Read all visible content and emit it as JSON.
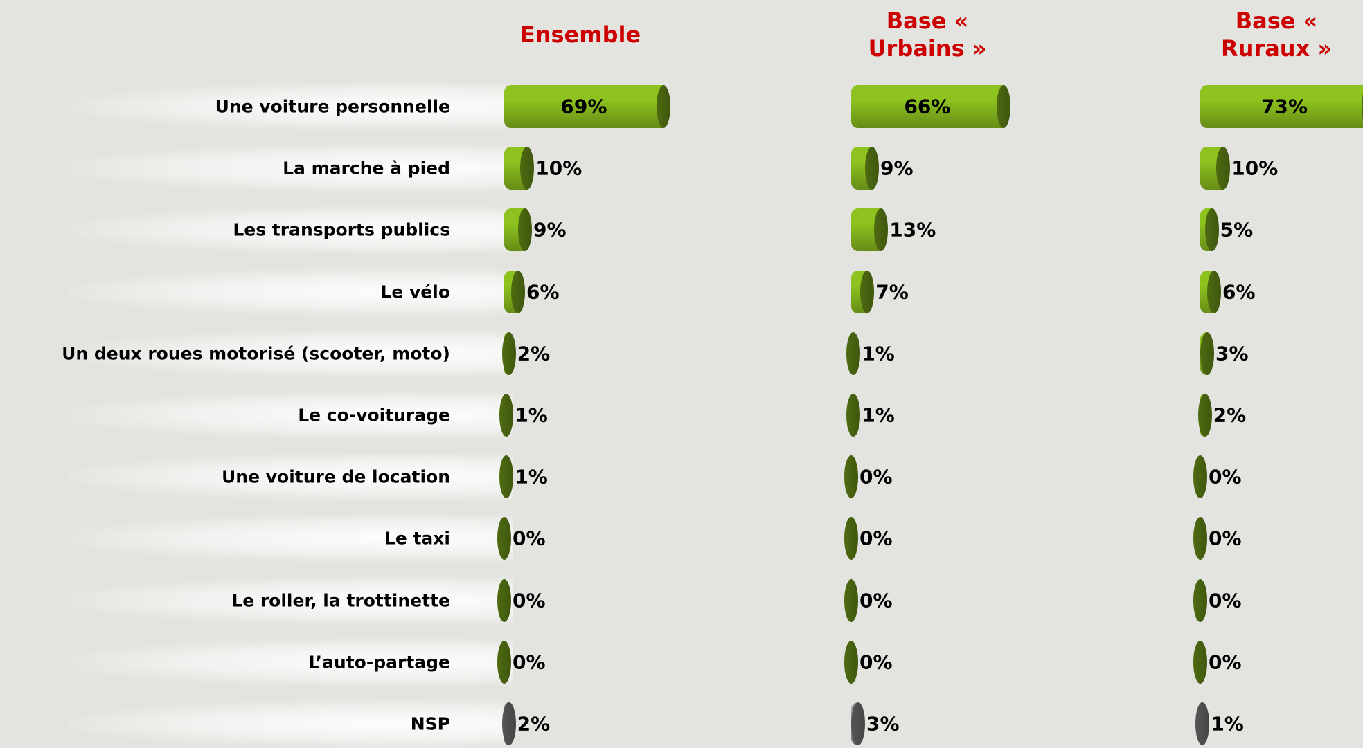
{
  "chart_data": {
    "type": "bar",
    "orientation": "horizontal",
    "categories": [
      "Une voiture personnelle",
      "La marche à pied",
      "Les transports publics",
      "Le vélo",
      "Un deux roues motorisé (scooter, moto)",
      "Le co-voiturage",
      "Une voiture de location",
      "Le taxi",
      "Le roller, la trottinette",
      "L’auto-partage",
      "NSP"
    ],
    "category_colors": [
      "#8dc21f",
      "#8dc21f",
      "#8dc21f",
      "#8dc21f",
      "#8dc21f",
      "#8dc21f",
      "#8dc21f",
      "#8dc21f",
      "#8dc21f",
      "#8dc21f",
      "#9a9a9a"
    ],
    "xlim": [
      0,
      100
    ],
    "series": [
      {
        "name": "Ensemble",
        "color": "#8dc21f",
        "values": [
          69,
          10,
          9,
          6,
          2,
          1,
          1,
          0,
          0,
          0,
          2
        ],
        "value_labels": [
          "69%",
          "10%",
          "9%",
          "6%",
          "2%",
          "1%",
          "1%",
          "0%",
          "0%",
          "0%",
          "2%"
        ]
      },
      {
        "name": "Base « Urbains »",
        "color": "#8dc21f",
        "values": [
          66,
          9,
          13,
          7,
          1,
          1,
          0,
          0,
          0,
          0,
          3
        ],
        "value_labels": [
          "66%",
          "9%",
          "13%",
          "7%",
          "1%",
          "1%",
          "0%",
          "0%",
          "0%",
          "0%",
          "3%"
        ]
      },
      {
        "name": "Base « Ruraux »",
        "color": "#8dc21f",
        "values": [
          73,
          10,
          5,
          6,
          3,
          2,
          0,
          0,
          0,
          0,
          1
        ],
        "value_labels": [
          "73%",
          "10%",
          "5%",
          "6%",
          "3%",
          "2%",
          "0%",
          "0%",
          "0%",
          "0%",
          "1%"
        ]
      }
    ]
  }
}
